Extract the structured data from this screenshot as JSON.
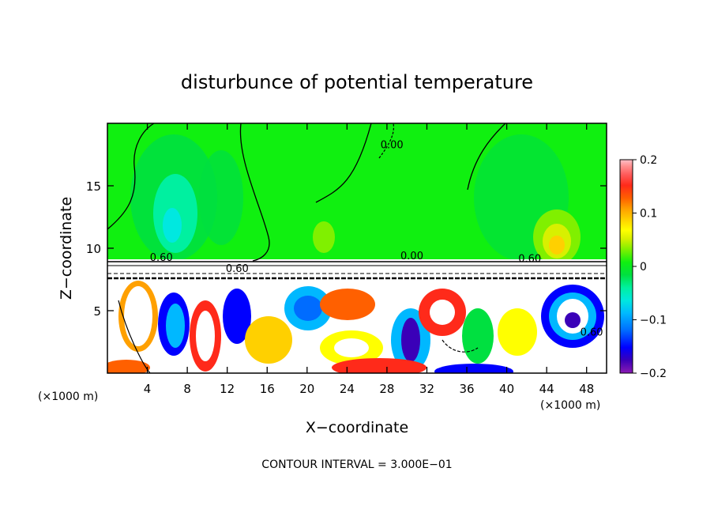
{
  "chart_data": {
    "type": "heatmap",
    "title": "disturbunce of potential temperature",
    "xlabel": "X−coordinate",
    "ylabel": "Z−coordinate",
    "x_unit": "(×1000 m)",
    "y_unit": "(×1000 m)",
    "footer": "CONTOUR INTERVAL = 3.000E−01",
    "xlim": [
      0,
      50
    ],
    "ylim": [
      0,
      20
    ],
    "x_ticks": [
      4,
      8,
      12,
      16,
      20,
      24,
      28,
      32,
      36,
      40,
      44,
      48
    ],
    "y_ticks": [
      5,
      10,
      15
    ],
    "colorbar": {
      "min": -0.2,
      "max": 0.2,
      "ticks": [
        0.2,
        0.1,
        0,
        -0.1,
        -0.2
      ],
      "tick_labels": [
        "0.2",
        "0.1",
        "0",
        "−0.1",
        "−0.2"
      ],
      "colors": [
        "#8c1ab3",
        "#3a00b8",
        "#0000ff",
        "#006cff",
        "#00b8ff",
        "#00e8e0",
        "#00f0a0",
        "#00e040",
        "#10f010",
        "#80f000",
        "#d8f000",
        "#ffff00",
        "#ffd000",
        "#ffa000",
        "#ff6000",
        "#ff2a1a",
        "#ff5a5a",
        "#ff9090",
        "#ffc0c8"
      ]
    },
    "contour_labels": [
      {
        "text": "0.00",
        "x": 28.5,
        "y": 18.0
      },
      {
        "text": "0.60",
        "x": 5.4,
        "y": 9.0
      },
      {
        "text": "0.60",
        "x": 13.0,
        "y": 8.1
      },
      {
        "text": "0.00",
        "x": 30.5,
        "y": 9.1
      },
      {
        "text": "0.60",
        "x": 42.3,
        "y": 8.9
      },
      {
        "text": "0.60",
        "x": 48.5,
        "y": 3.0
      }
    ]
  }
}
